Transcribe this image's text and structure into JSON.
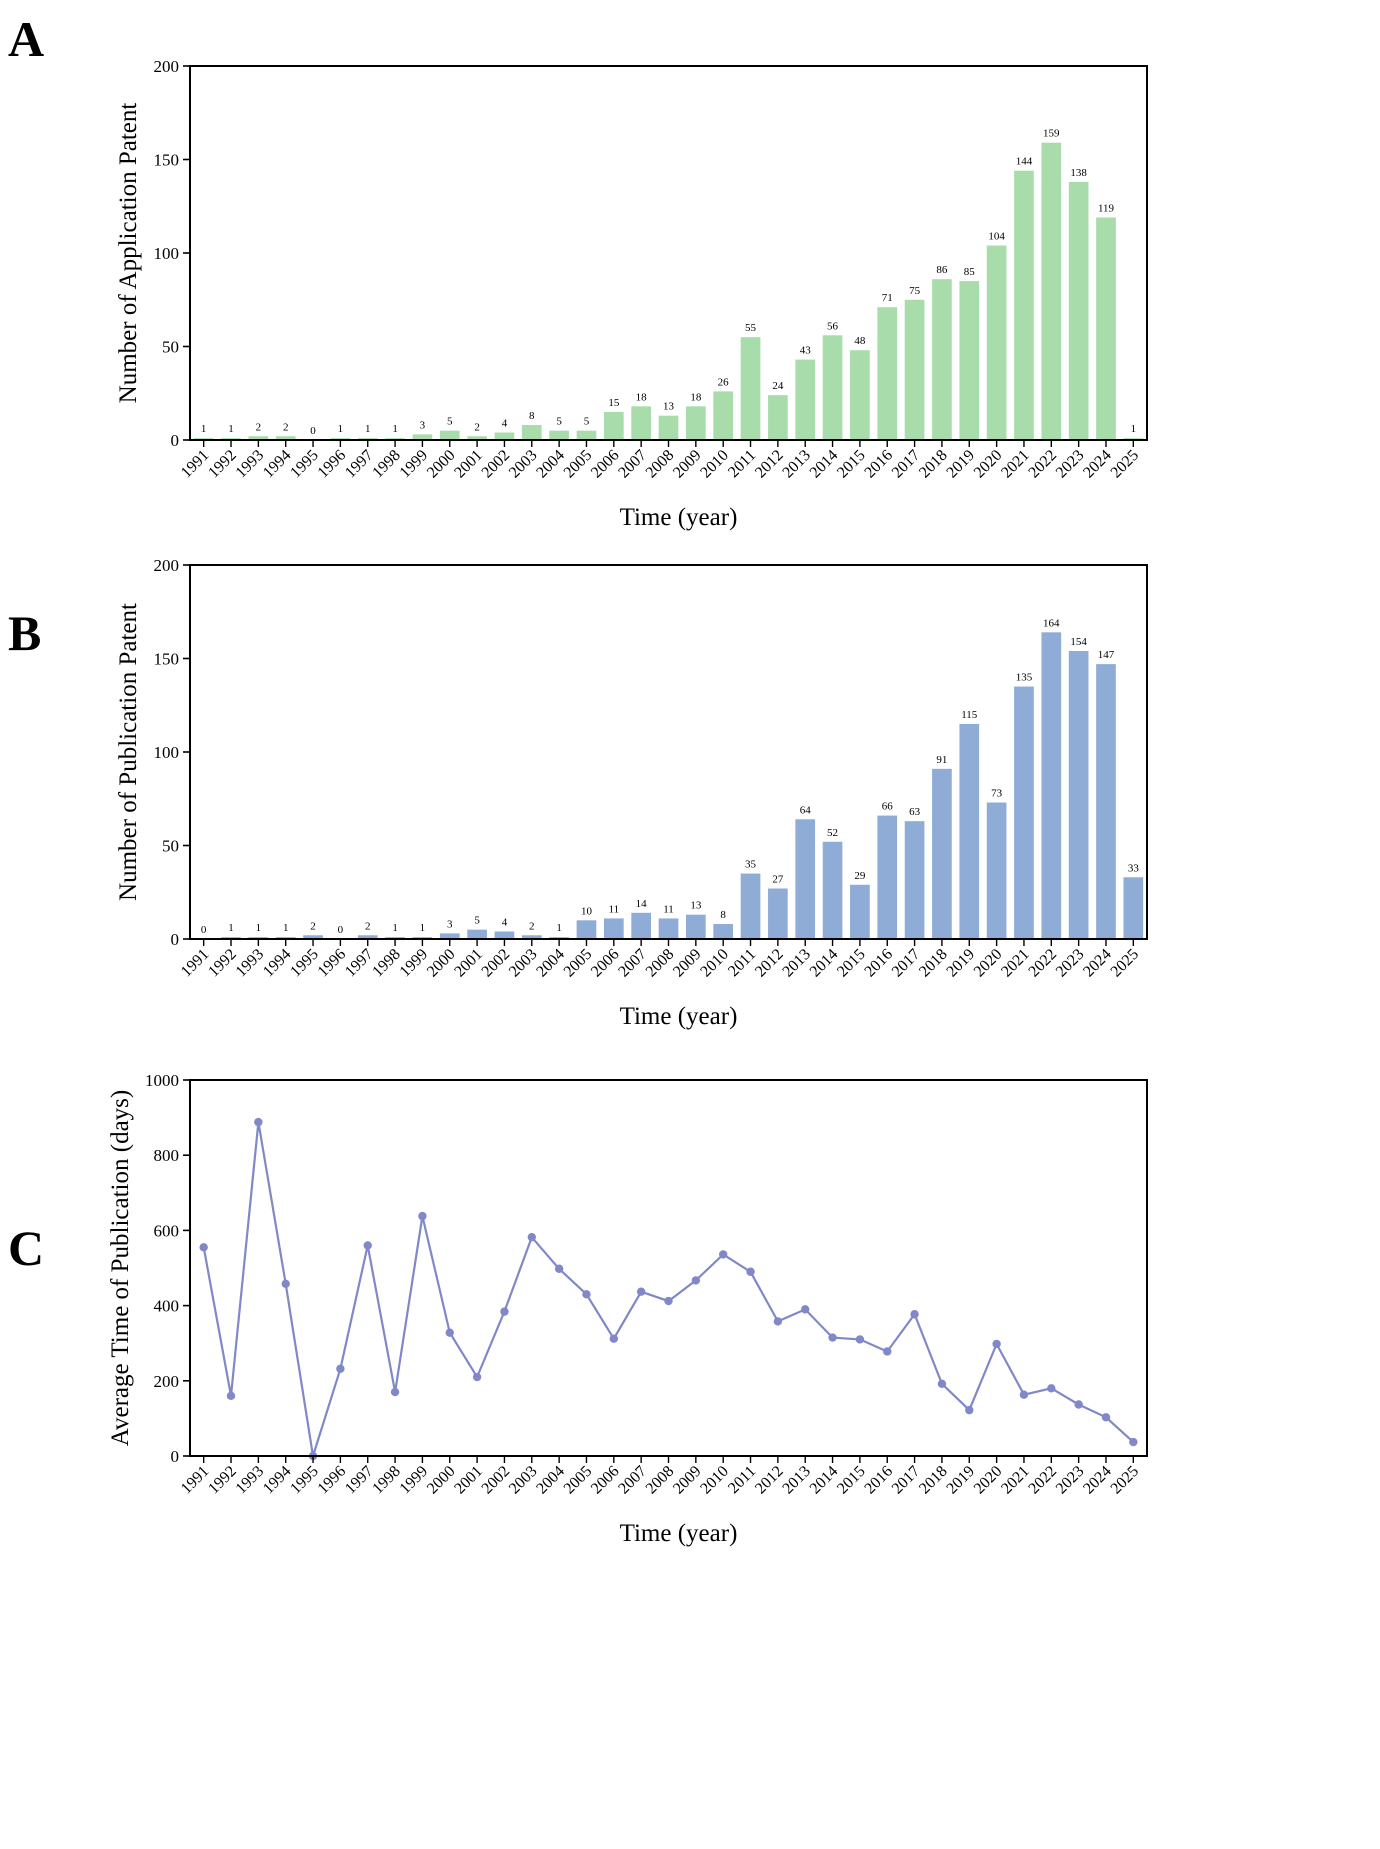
{
  "chart_data": [
    {
      "panel": "A",
      "type": "bar",
      "xlabel": "Time (year)",
      "ylabel": "Number of Application Patent",
      "ylim": [
        0,
        200
      ],
      "yticks": [
        "0",
        "50",
        "100",
        "150",
        "200"
      ],
      "color": "#a8ddab",
      "categories": [
        "1991",
        "1992",
        "1993",
        "1994",
        "1995",
        "1996",
        "1997",
        "1998",
        "1999",
        "2000",
        "2001",
        "2002",
        "2003",
        "2004",
        "2005",
        "2006",
        "2007",
        "2008",
        "2009",
        "2010",
        "2011",
        "2012",
        "2013",
        "2014",
        "2015",
        "2016",
        "2017",
        "2018",
        "2019",
        "2020",
        "2021",
        "2022",
        "2023",
        "2024",
        "2025"
      ],
      "values": [
        1,
        1,
        2,
        2,
        0,
        1,
        1,
        1,
        3,
        5,
        2,
        4,
        8,
        5,
        5,
        15,
        18,
        13,
        18,
        26,
        55,
        24,
        43,
        56,
        48,
        71,
        75,
        86,
        85,
        104,
        144,
        159,
        138,
        119,
        1
      ],
      "labels": [
        "1",
        "1",
        "2",
        "2",
        "0",
        "1",
        "1",
        "1",
        "3",
        "5",
        "2",
        "4",
        "8",
        "5",
        "5",
        "15",
        "18",
        "13",
        "18",
        "26",
        "55",
        "24",
        "43",
        "56",
        "48",
        "71",
        "75",
        "86",
        "85",
        "104",
        "144",
        "159",
        "138",
        "119",
        "1"
      ]
    },
    {
      "panel": "B",
      "type": "bar",
      "xlabel": "Time (year)",
      "ylabel": "Number of Publication Patent",
      "ylim": [
        0,
        200
      ],
      "yticks": [
        "0",
        "50",
        "100",
        "150",
        "200"
      ],
      "color": "#8eacd6",
      "categories": [
        "1991",
        "1992",
        "1993",
        "1994",
        "1995",
        "1996",
        "1997",
        "1998",
        "1999",
        "2000",
        "2001",
        "2002",
        "2003",
        "2004",
        "2005",
        "2006",
        "2007",
        "2008",
        "2009",
        "2010",
        "2011",
        "2012",
        "2013",
        "2014",
        "2015",
        "2016",
        "2017",
        "2018",
        "2019",
        "2020",
        "2021",
        "2022",
        "2023",
        "2024",
        "2025"
      ],
      "values": [
        0,
        1,
        1,
        1,
        2,
        0,
        2,
        1,
        1,
        3,
        5,
        4,
        2,
        1,
        10,
        11,
        14,
        11,
        13,
        8,
        35,
        27,
        64,
        52,
        29,
        66,
        63,
        91,
        115,
        73,
        135,
        164,
        154,
        147,
        33
      ],
      "labels": [
        "0",
        "1",
        "1",
        "1",
        "2",
        "0",
        "2",
        "1",
        "1",
        "3",
        "5",
        "4",
        "2",
        "1",
        "10",
        "11",
        "14",
        "11",
        "13",
        "8",
        "35",
        "27",
        "64",
        "52",
        "29",
        "66",
        "63",
        "91",
        "115",
        "73",
        "135",
        "164",
        "154",
        "147",
        "33"
      ]
    },
    {
      "panel": "C",
      "type": "line",
      "xlabel": "Time (year)",
      "ylabel": "Average Time of Publication (days)",
      "ylim": [
        0,
        1000
      ],
      "yticks": [
        "0",
        "200",
        "400",
        "600",
        "800",
        "1000"
      ],
      "color": "#8088c8",
      "categories": [
        "1991",
        "1992",
        "1993",
        "1994",
        "1995",
        "1996",
        "1997",
        "1998",
        "1999",
        "2000",
        "2001",
        "2002",
        "2003",
        "2004",
        "2005",
        "2006",
        "2007",
        "2008",
        "2009",
        "2010",
        "2011",
        "2012",
        "2013",
        "2014",
        "2015",
        "2016",
        "2017",
        "2018",
        "2019",
        "2020",
        "2021",
        "2022",
        "2023",
        "2024",
        "2025"
      ],
      "values": [
        555,
        160,
        888,
        458,
        0,
        232,
        560,
        170,
        638,
        328,
        210,
        384,
        582,
        498,
        430,
        312,
        437,
        412,
        467,
        536,
        490,
        358,
        390,
        315,
        310,
        278,
        377,
        192,
        122,
        298,
        163,
        180,
        137,
        103,
        37
      ]
    }
  ]
}
